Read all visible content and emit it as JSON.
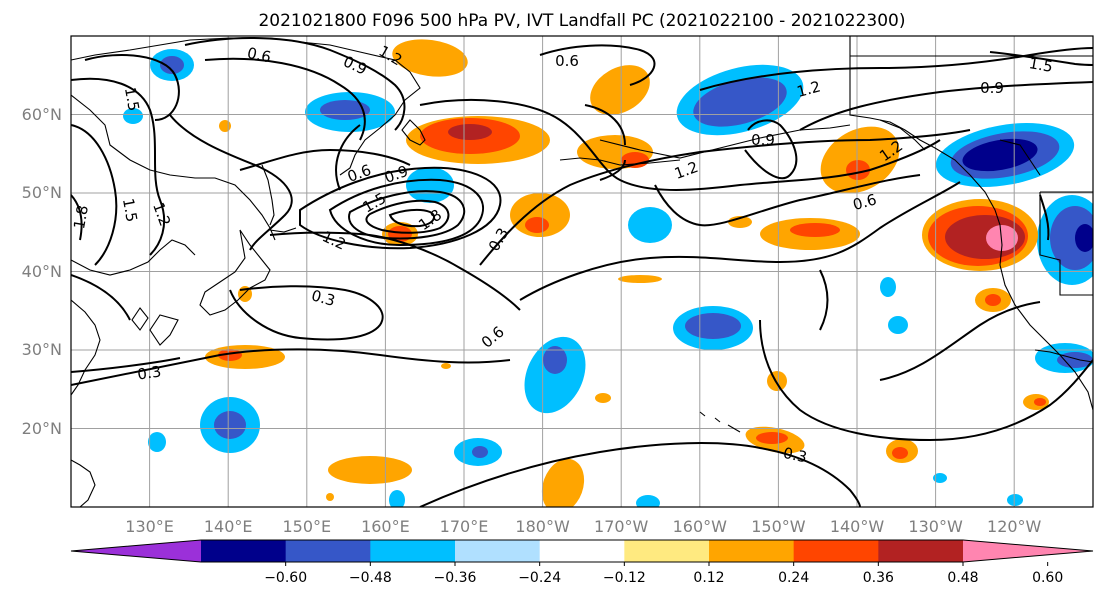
{
  "title": "2021021800 F096 500 hPa PV, IVT Landfall PC (2021022100 - 2021022300)",
  "lon_labels": [
    "130°E",
    "140°E",
    "150°E",
    "160°E",
    "170°E",
    "180°W",
    "170°W",
    "160°W",
    "150°W",
    "140°W",
    "130°W",
    "120°W"
  ],
  "lat_labels": [
    "60°N",
    "50°N",
    "40°N",
    "30°N",
    "20°N"
  ],
  "colorbar": {
    "colors": [
      "#9b30d9",
      "#00008b",
      "#3657c8",
      "#00bfff",
      "#b0e0ff",
      "#ffffff",
      "#ffea80",
      "#ffa500",
      "#ff4500",
      "#b22222",
      "#ff85b0"
    ],
    "tick_labels": [
      "−0.60",
      "−0.48",
      "−0.36",
      "−0.24",
      "−0.12",
      "0.12",
      "0.24",
      "0.36",
      "0.48",
      "0.60"
    ]
  },
  "contour_labels": [
    "0.6",
    "0.9",
    "1.2",
    "1.5",
    "1.8",
    "0.3"
  ],
  "contour_label_instances": [
    "0.6",
    "0.9",
    "1.2",
    "0.6",
    "1.5",
    "0.9",
    "1.2",
    "1.5",
    "1.8",
    "0.6",
    "0.9",
    "1.5",
    "1.8",
    "1.2",
    "0.3",
    "1.2",
    "0.9",
    "1.2",
    "0.6",
    "0.3",
    "0.6",
    "0.3",
    "0.3",
    "1.2",
    "1.5"
  ]
}
